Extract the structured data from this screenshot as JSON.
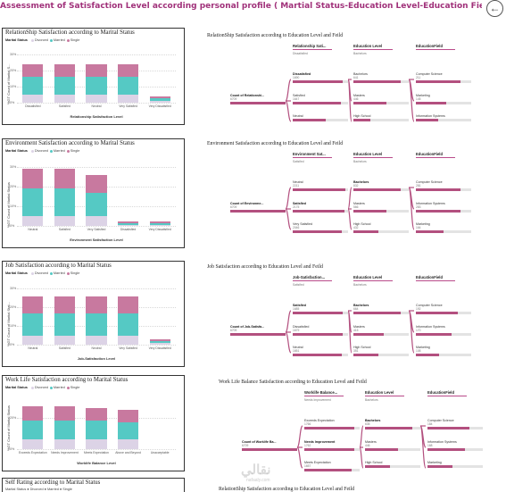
{
  "header": {
    "title": "Assessment of Satisfaction Level according personal profile ( Martial Status-Education Level-Education Field)",
    "back_icon": "back-arrow-icon"
  },
  "colors": {
    "divorced": "#dcd3e6",
    "married": "#55c9c4",
    "single": "#c8799f",
    "accent": "#b3507f"
  },
  "legend": {
    "title": "Marital Status",
    "items": [
      "Divorced",
      "Married",
      "Single"
    ]
  },
  "left_panels": [
    {
      "title": "RelationShip Satisfaction according to Marital Status",
      "ytitle": "%GT Count of Marital S...",
      "xtitle": "Relationship Satisfaction Level",
      "ticks": [
        "30%",
        "20%",
        "10%",
        "0%"
      ],
      "categories": [
        "Dissatisfied",
        "Satisfied",
        "Neutral",
        "Very Satisfied",
        "Very Dissatisfied"
      ]
    },
    {
      "title": "Environment Satisfaction according to Marital Status",
      "ytitle": "%GT Count of Marital Status",
      "xtitle": "Environment Satisfaction Level",
      "ticks": [
        "30%",
        "20%",
        "10%",
        "0%"
      ],
      "categories": [
        "Neutral",
        "Satisfied",
        "Very Satisfied",
        "Dissatisfied",
        "Very Dissatisfied"
      ]
    },
    {
      "title": "Job Satisfaction according to Marital Status",
      "ytitle": "%GT Count of Marital Stat...",
      "xtitle": "Job-Satisfaction Level",
      "ticks": [
        "30%",
        "20%",
        "10%",
        "0%"
      ],
      "categories": [
        "Neutral",
        "Satisfied",
        "Neutral",
        "Very Satisfied",
        "Very Dissatisfied"
      ]
    },
    {
      "title": "Work Life Satisfaction according to Marital Status",
      "ytitle": "%GT Count of Marital Status",
      "xtitle": "Worklife Balance Level",
      "ticks": [
        "20%",
        "0%"
      ],
      "categories": [
        "Exceeds Expectation",
        "Needs Improvement",
        "Meets Expectation",
        "Above and Beyond",
        "Unacceptable"
      ]
    },
    {
      "title": "Self Rating according to Marital Status",
      "partial_text": "Marital Status ● Divorced ● Married ● Single"
    }
  ],
  "flows": [
    {
      "title": "RelationShip Satisfaction according to Education Level and Feild",
      "heads": [
        "Relationship Sati...",
        "Education Level",
        "EducationField"
      ],
      "subs": [
        "Dissatisfied",
        "Bachelors",
        ""
      ],
      "root": {
        "label": "Count of Relationshi...",
        "value": "6709"
      },
      "level1": [
        {
          "label": "Dissatisfied",
          "value": "1690",
          "bold": true,
          "fill": 0.9
        },
        {
          "label": "Satisfied",
          "value": "1647",
          "bold": false,
          "fill": 0.87
        },
        {
          "label": "Neutral",
          "value": "",
          "bold": false,
          "fill": 0.6
        }
      ],
      "level2": [
        {
          "label": "Bachelors",
          "value": "641",
          "bold": false,
          "fill": 0.85
        },
        {
          "label": "Masters",
          "value": "446",
          "bold": false,
          "fill": 0.6
        },
        {
          "label": "High School",
          "value": "",
          "bold": false,
          "fill": 0.3
        }
      ],
      "level3": [
        {
          "label": "Computer Science",
          "value": "211",
          "bold": false,
          "fill": 0.8
        },
        {
          "label": "Marketing",
          "value": "145",
          "bold": false,
          "fill": 0.55
        },
        {
          "label": "Information Systems",
          "value": "",
          "bold": false,
          "fill": 0.4
        }
      ]
    },
    {
      "title": "Environment Satisfaction according to Education Level and Feild",
      "heads": [
        "Environment Sat...",
        "Education Level",
        "EducationField"
      ],
      "subs": [
        "Satisfied",
        "Bachelors",
        ""
      ],
      "root": {
        "label": "Count of Environme...",
        "value": "6709"
      },
      "level1": [
        {
          "label": "Neutral",
          "value": "2211",
          "bold": false,
          "fill": 0.95
        },
        {
          "label": "Satisfied",
          "value": "2175",
          "bold": true,
          "fill": 0.93
        },
        {
          "label": "Very Satisfied",
          "value": "2046",
          "bold": false,
          "fill": 0.88
        }
      ],
      "level2": [
        {
          "label": "Bachelors",
          "value": "832",
          "bold": true,
          "fill": 0.85
        },
        {
          "label": "Masters",
          "value": "566",
          "bold": false,
          "fill": 0.6
        },
        {
          "label": "High School",
          "value": "432",
          "bold": false,
          "fill": 0.45
        }
      ],
      "level3": [
        {
          "label": "Computer Science",
          "value": "281",
          "bold": false,
          "fill": 0.8
        },
        {
          "label": "Information Systems",
          "value": "283",
          "bold": false,
          "fill": 0.8
        },
        {
          "label": "Marketing",
          "value": "164",
          "bold": false,
          "fill": 0.5
        }
      ]
    },
    {
      "title": "Job Satisfaction according to Education Level and Feild",
      "heads": [
        "Job-Satisfaction...",
        "Education Level",
        "EducationField"
      ],
      "subs": [
        "Satisfied",
        "Bachelors",
        ""
      ],
      "root": {
        "label": "Count of Job-Satisfa...",
        "value": "6709"
      },
      "level1": [
        {
          "label": "Satisfied",
          "value": "1685",
          "bold": true,
          "fill": 0.9
        },
        {
          "label": "Dissatisfied",
          "value": "1679",
          "bold": false,
          "fill": 0.9
        },
        {
          "label": "Neutral",
          "value": "1651",
          "bold": false,
          "fill": 0.88
        }
      ],
      "level2": [
        {
          "label": "Bachelors",
          "value": "664",
          "bold": true,
          "fill": 0.85
        },
        {
          "label": "Masters",
          "value": "415",
          "bold": false,
          "fill": 0.55
        },
        {
          "label": "High School",
          "value": "351",
          "bold": false,
          "fill": 0.45
        }
      ],
      "level3": [
        {
          "label": "Computer Science",
          "value": "192",
          "bold": false,
          "fill": 0.75
        },
        {
          "label": "Information Systems",
          "value": "170",
          "bold": false,
          "fill": 0.65
        },
        {
          "label": "Marketing",
          "value": "108",
          "bold": false,
          "fill": 0.42
        }
      ]
    },
    {
      "title": "Work Life Balance Satisfaction according to Education Level and Feild",
      "heads": [
        "Worklife Balance...",
        "Education Level",
        "EducationField"
      ],
      "subs": [
        "Needs Improvement",
        "Bachelors",
        ""
      ],
      "root": {
        "label": "Count of Worklife Ba...",
        "value": "6709"
      },
      "level1": [
        {
          "label": "Exceeds Expectation",
          "value": "1766",
          "bold": false,
          "fill": 0.9
        },
        {
          "label": "Needs Improvement",
          "value": "1762",
          "bold": true,
          "fill": 0.9
        },
        {
          "label": "Meets Expectation",
          "value": "1657",
          "bold": false,
          "fill": 0.85
        }
      ],
      "level2": [
        {
          "label": "Bachelors",
          "value": "635",
          "bold": true,
          "fill": 0.85
        },
        {
          "label": "Masters",
          "value": "446",
          "bold": false,
          "fill": 0.6
        },
        {
          "label": "High School",
          "value": "",
          "bold": false,
          "fill": 0.45
        }
      ],
      "level3": [
        {
          "label": "Computer Science",
          "value": "184",
          "bold": false,
          "fill": 0.75
        },
        {
          "label": "Information Systems",
          "value": "168",
          "bold": false,
          "fill": 0.68
        },
        {
          "label": "Marketing",
          "value": "",
          "bold": false,
          "fill": 0.45
        }
      ]
    }
  ],
  "flow_partial_title": "RelationShip Satisfaction according to Education Level and Feild",
  "watermark": {
    "main": "نقالي",
    "sub": "nafaaly.com"
  },
  "chart_data": [
    {
      "type": "bar",
      "title": "RelationShip Satisfaction according to Marital Status",
      "categories": [
        "Dissatisfied",
        "Satisfied",
        "Neutral",
        "Very Satisfied",
        "Very Dissatisfied"
      ],
      "series": [
        {
          "name": "Divorced",
          "values": [
            5,
            5,
            5,
            5,
            1
          ]
        },
        {
          "name": "Married",
          "values": [
            11,
            11,
            11,
            11,
            2
          ]
        },
        {
          "name": "Single",
          "values": [
            8,
            8,
            8,
            8,
            1
          ]
        }
      ],
      "ylabel": "%GT Count of Marital S...",
      "xlabel": "Relationship Satisfaction Level",
      "ylim": [
        0,
        35
      ]
    },
    {
      "type": "bar",
      "title": "Environment Satisfaction according to Marital Status",
      "categories": [
        "Neutral",
        "Satisfied",
        "Very Satisfied",
        "Dissatisfied",
        "Very Dissatisfied"
      ],
      "series": [
        {
          "name": "Divorced",
          "values": [
            5,
            5,
            5,
            0.5,
            0.5
          ]
        },
        {
          "name": "Married",
          "values": [
            14,
            14,
            12,
            1,
            1
          ]
        },
        {
          "name": "Single",
          "values": [
            10,
            10,
            9,
            1,
            1
          ]
        }
      ],
      "ylabel": "%GT Count of Marital Status",
      "xlabel": "Environment Satisfaction Level",
      "ylim": [
        0,
        35
      ]
    },
    {
      "type": "bar",
      "title": "Job Satisfaction according to Marital Status",
      "categories": [
        "Neutral",
        "Satisfied",
        "Neutral",
        "Very Satisfied",
        "Very Dissatisfied"
      ],
      "series": [
        {
          "name": "Divorced",
          "values": [
            5,
            5,
            5,
            5,
            1
          ]
        },
        {
          "name": "Married",
          "values": [
            12,
            12,
            12,
            12,
            1
          ]
        },
        {
          "name": "Single",
          "values": [
            9,
            9,
            9,
            9,
            1
          ]
        }
      ],
      "ylabel": "%GT Count of Marital Stat...",
      "xlabel": "Job-Satisfaction Level",
      "ylim": [
        0,
        35
      ]
    },
    {
      "type": "bar",
      "title": "Work Life Satisfaction according to Marital Status",
      "categories": [
        "Exceeds Expectation",
        "Needs Improvement",
        "Meets Expectation",
        "Above and Beyond",
        "Unacceptable"
      ],
      "series": [
        {
          "name": "Divorced",
          "values": [
            6,
            6,
            6,
            6,
            0
          ]
        },
        {
          "name": "Married",
          "values": [
            12,
            12,
            12,
            11,
            0
          ]
        },
        {
          "name": "Single",
          "values": [
            9,
            9,
            8,
            8,
            0
          ]
        }
      ],
      "ylabel": "%GT Count of Marital Status",
      "xlabel": "Worklife Balance Level",
      "ylim": [
        0,
        35
      ]
    }
  ]
}
